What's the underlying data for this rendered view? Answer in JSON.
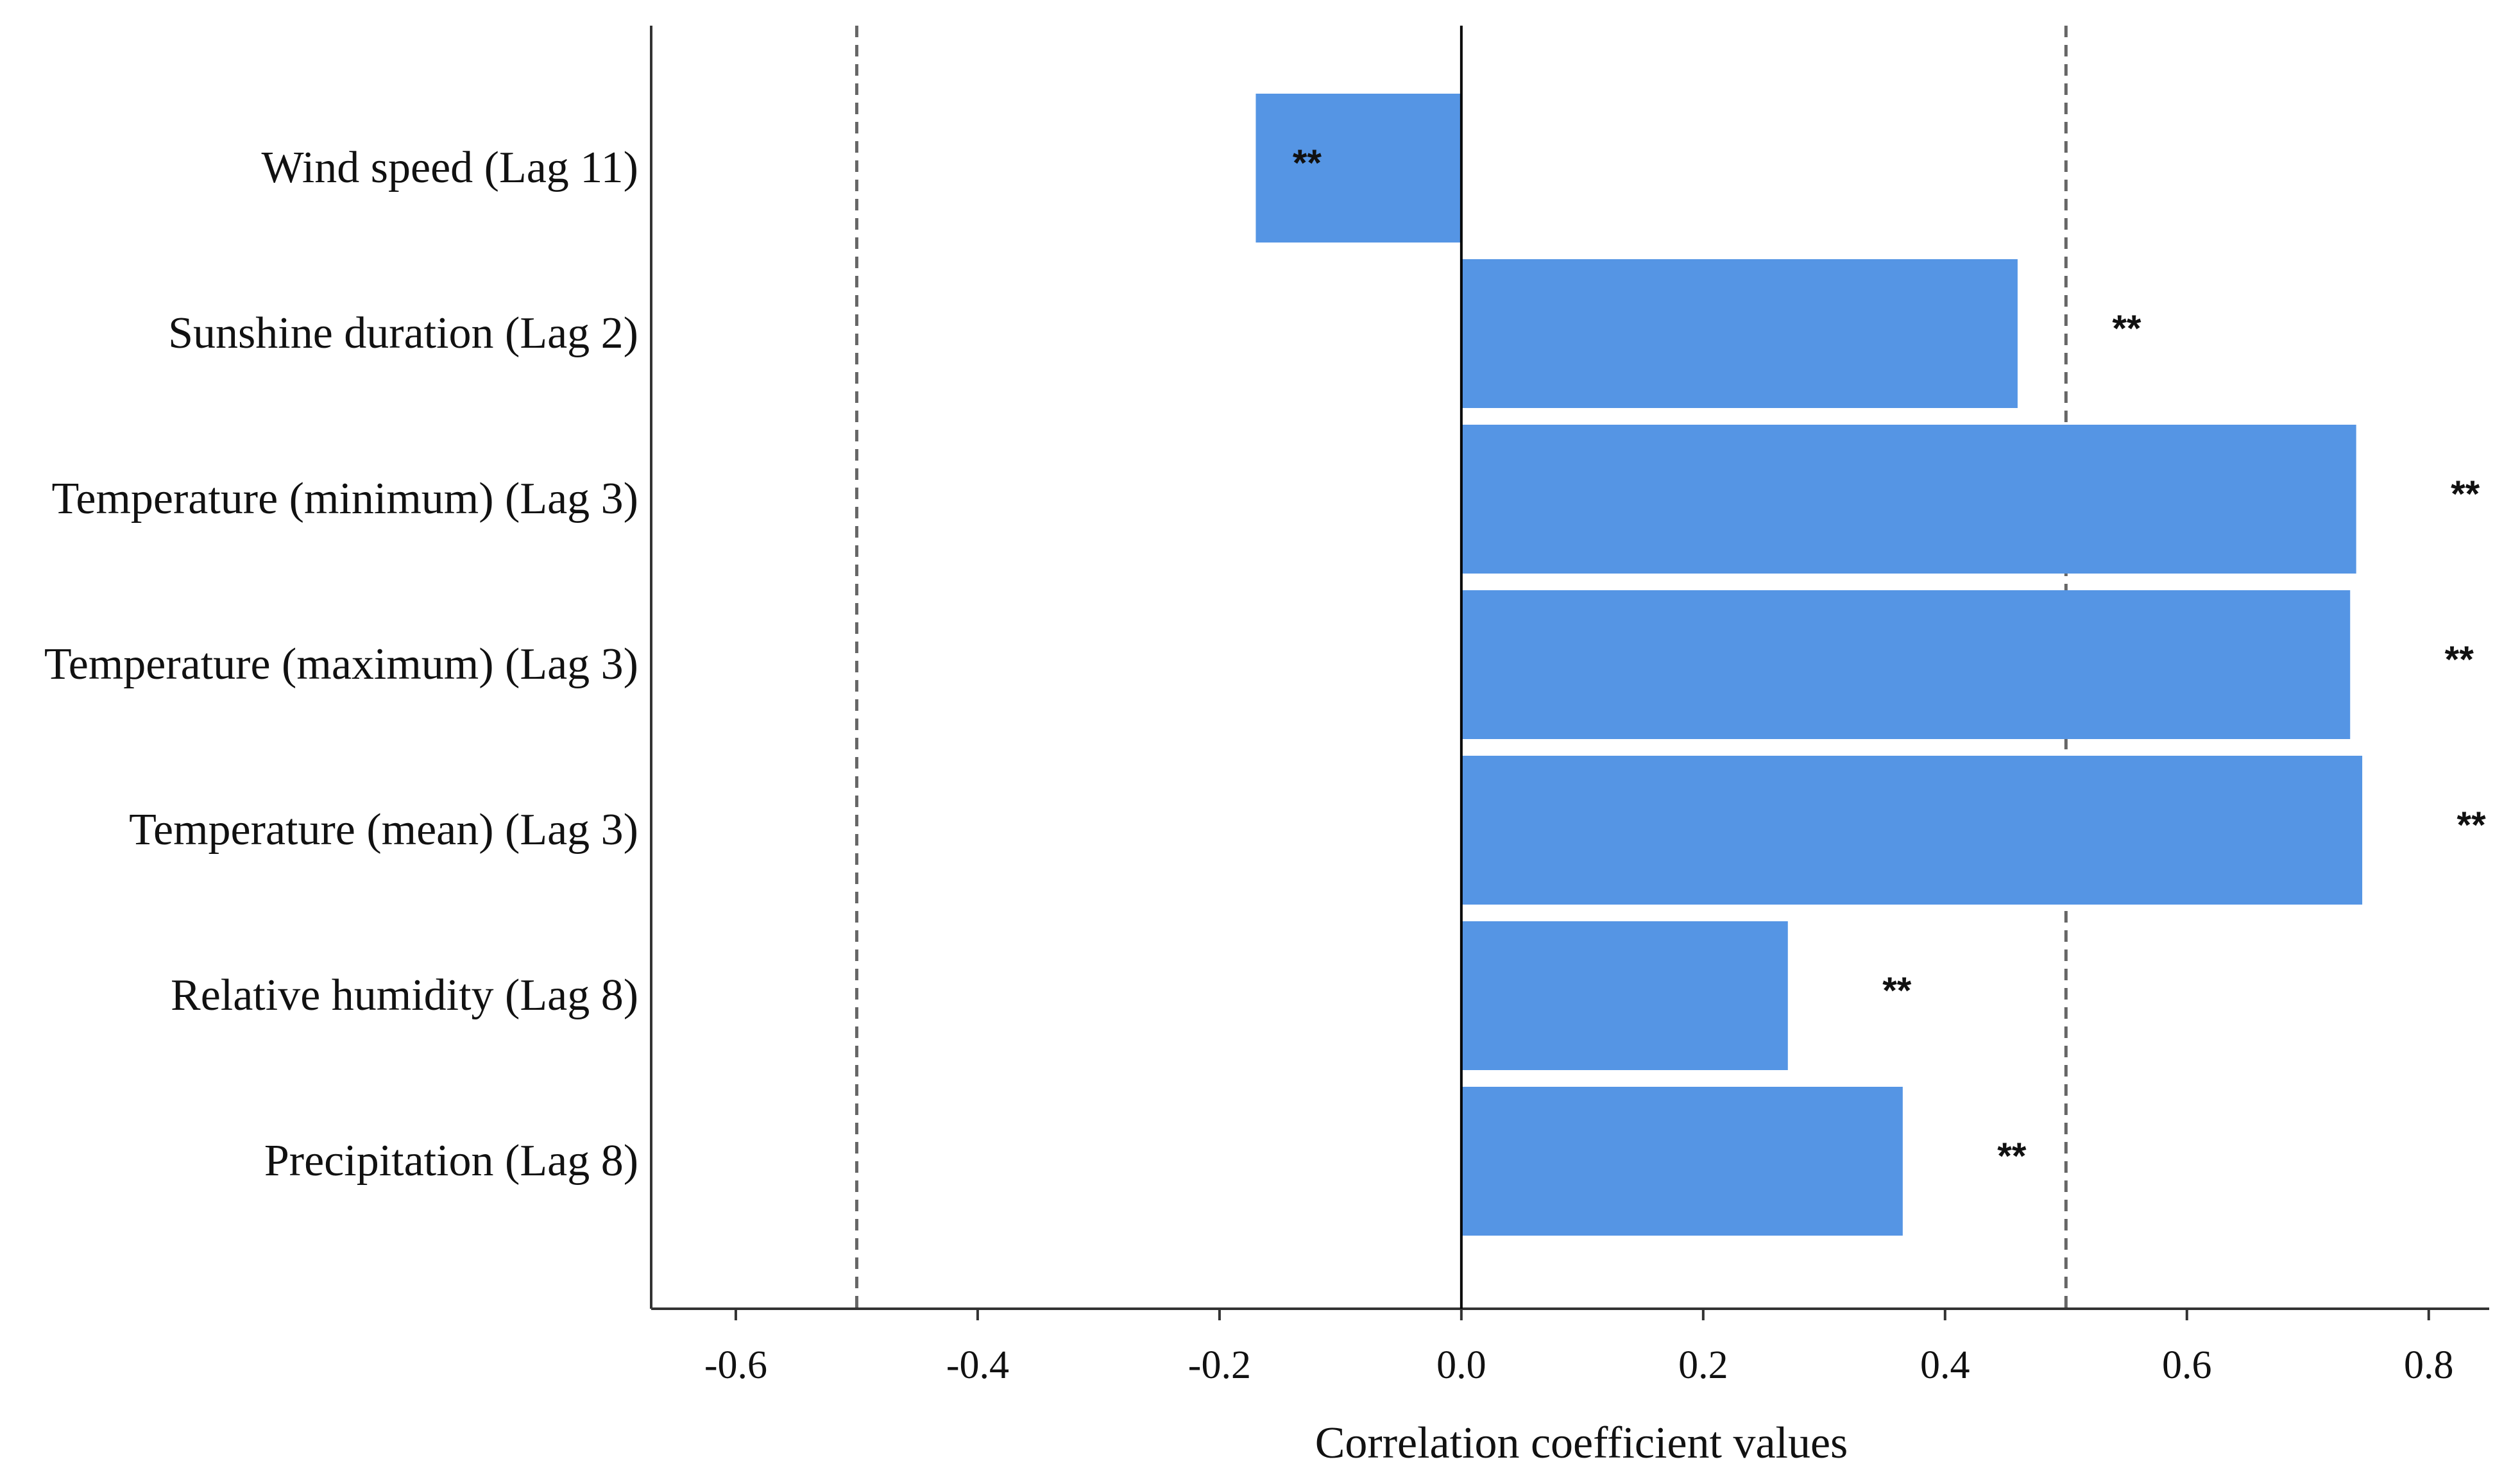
{
  "chart_data": {
    "type": "bar",
    "orientation": "horizontal",
    "title": "",
    "xlabel": "Correlation coefficient values",
    "ylabel": "",
    "xlim": [
      -0.67,
      0.85
    ],
    "x_ticks": [
      -0.6,
      -0.4,
      -0.2,
      0.0,
      0.2,
      0.4,
      0.6,
      0.8
    ],
    "x_tick_labels": [
      "-0.6",
      "-0.4",
      "-0.2",
      "0.0",
      "0.2",
      "0.4",
      "0.6",
      "0.8"
    ],
    "categories": [
      "Wind speed (Lag 11)",
      "Sunshine duration (Lag 2)",
      "Temperature (minimum) (Lag 3)",
      "Temperature (maximum) (Lag 3)",
      "Temperature (mean) (Lag 3)",
      "Relative humidity (Lag 8)",
      "Precipitation (Lag 8)"
    ],
    "values": [
      -0.17,
      0.46,
      0.74,
      0.735,
      0.745,
      0.27,
      0.365
    ],
    "significance": [
      "**",
      "**",
      "**",
      "**",
      "**",
      "**",
      "**"
    ],
    "reference_lines": [
      -0.5,
      0.5
    ],
    "zero_line": 0.0,
    "grid": false,
    "legend": "none",
    "colors": {
      "bar": "#5595e4",
      "reference_line": "#666666",
      "axis": "#333333",
      "zero_line": "#000000"
    }
  }
}
